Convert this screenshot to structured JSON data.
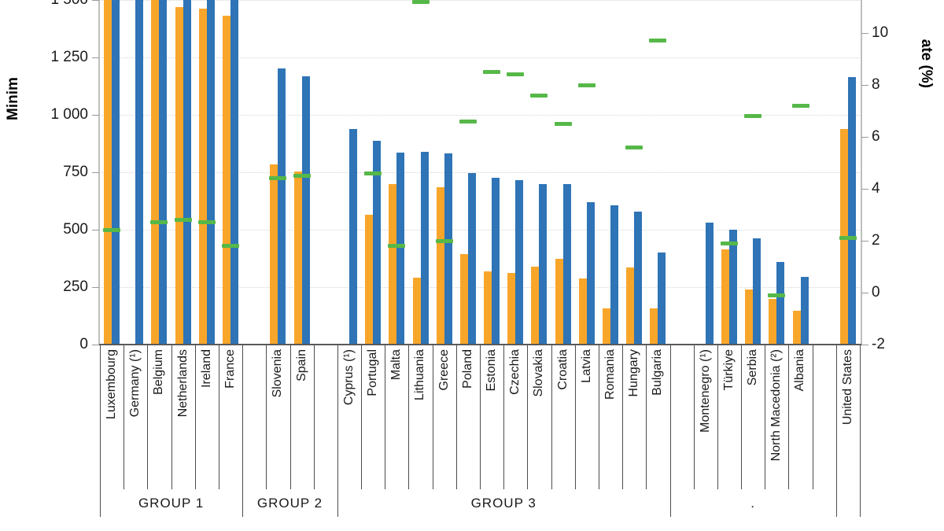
{
  "page": {
    "background": "#ffffff"
  },
  "axis_left": {
    "title_fragment": "Minim",
    "tick_labels": [
      "1 500",
      "1 250",
      "1 000",
      "750",
      "500",
      "250",
      "0"
    ],
    "tick_values": [
      1500,
      1250,
      1000,
      750,
      500,
      250,
      0
    ]
  },
  "axis_right": {
    "title_fragment": "ate (%)",
    "tick_labels": [
      "10",
      "8",
      "6",
      "4",
      "2",
      "0",
      "-2"
    ],
    "tick_values": [
      10,
      8,
      6,
      4,
      2,
      0,
      -2
    ]
  },
  "colors": {
    "bar_orange": "#F8A62A",
    "bar_blue": "#2E74B6",
    "dash_green": "#56B848",
    "gridline": "#D4D4D4",
    "axis_line": "#BFBFBF",
    "baseline": "#595959",
    "divider": "#4D4D4D",
    "text": "#1A1A1A"
  },
  "chart_data": {
    "type": "bar",
    "series_info": {
      "orange_bar_axis": "left (EUR per month)",
      "blue_bar_axis": "left (EUR per month)",
      "green_dash_axis": "right (%)"
    },
    "left_axis_visible_range": [
      0,
      1500
    ],
    "right_axis_visible_range": [
      -2,
      10
    ],
    "grid": true,
    "note": "top of chart cropped; Group 1 blue bars and some orange bars exceed visible 1500 maximum",
    "groups": [
      {
        "label": "GROUP 1",
        "pad_left": 0,
        "pad_right": 0,
        "countries": [
          {
            "label": "Luxembourg",
            "orange": 1874,
            "blue": 2387,
            "green": 2.4
          },
          {
            "label": "Germany (¹)",
            "orange": null,
            "blue": 1987,
            "green": null
          },
          {
            "label": "Belgium",
            "orange": 1502,
            "blue": 1955,
            "green": 2.7
          },
          {
            "label": "Netherlands",
            "orange": 1469,
            "blue": 1934,
            "green": 2.8
          },
          {
            "label": "Ireland",
            "orange": 1462,
            "blue": 1910,
            "green": 2.7
          },
          {
            "label": "France",
            "orange": 1430,
            "blue": 1709,
            "green": 1.8
          }
        ]
      },
      {
        "label": "GROUP 2",
        "pad_left": 1,
        "pad_right": 1,
        "countries": [
          {
            "label": "Slovenia",
            "orange": 784,
            "blue": 1203,
            "green": 4.4
          },
          {
            "label": "Spain",
            "orange": 753,
            "blue": 1167,
            "green": 4.5
          }
        ]
      },
      {
        "label": "GROUP 3",
        "pad_left": 0,
        "pad_right": 0,
        "countries": [
          {
            "label": "Cyprus (¹)",
            "orange": null,
            "blue": 940,
            "green": null
          },
          {
            "label": "Portugal",
            "orange": 566,
            "blue": 887,
            "green": 4.6
          },
          {
            "label": "Malta",
            "orange": 697,
            "blue": 835,
            "green": 1.8
          },
          {
            "label": "Lithuania",
            "orange": 290,
            "blue": 840,
            "green": 11.2
          },
          {
            "label": "Greece",
            "orange": 684,
            "blue": 832,
            "green": 2.0
          },
          {
            "label": "Poland",
            "orange": 393,
            "blue": 746,
            "green": 6.6
          },
          {
            "label": "Estonia",
            "orange": 320,
            "blue": 725,
            "green": 8.5
          },
          {
            "label": "Czechia",
            "orange": 312,
            "blue": 717,
            "green": 8.4
          },
          {
            "label": "Slovakia",
            "orange": 338,
            "blue": 700,
            "green": 7.6
          },
          {
            "label": "Croatia",
            "orange": 372,
            "blue": 700,
            "green": 6.5
          },
          {
            "label": "Latvia",
            "orange": 287,
            "blue": 620,
            "green": 8.0
          },
          {
            "label": "Romania",
            "orange": 158,
            "blue": 606,
            "green": null
          },
          {
            "label": "Hungary",
            "orange": 335,
            "blue": 579,
            "green": 5.6
          },
          {
            "label": "Bulgaria",
            "orange": 159,
            "blue": 399,
            "green": 9.7
          }
        ]
      },
      {
        "label": ".",
        "pad_left": 1,
        "pad_right": 1,
        "countries": [
          {
            "label": "Montenegro (¹)",
            "orange": null,
            "blue": 532,
            "green": null
          },
          {
            "label": "Türkiye",
            "orange": 416,
            "blue": 500,
            "green": 1.9
          },
          {
            "label": "Serbia",
            "orange": 239,
            "blue": 461,
            "green": 6.8
          },
          {
            "label": "North Macedonia (²)",
            "orange": 197,
            "blue": 360,
            "green": -0.1
          },
          {
            "label": "Albania",
            "orange": 147,
            "blue": 296,
            "green": 7.2
          }
        ]
      },
      {
        "label": "",
        "pad_left": 0,
        "pad_right": 0,
        "countries": [
          {
            "label": "United States",
            "orange": 940,
            "blue": 1165,
            "green": 2.1
          }
        ]
      }
    ]
  }
}
